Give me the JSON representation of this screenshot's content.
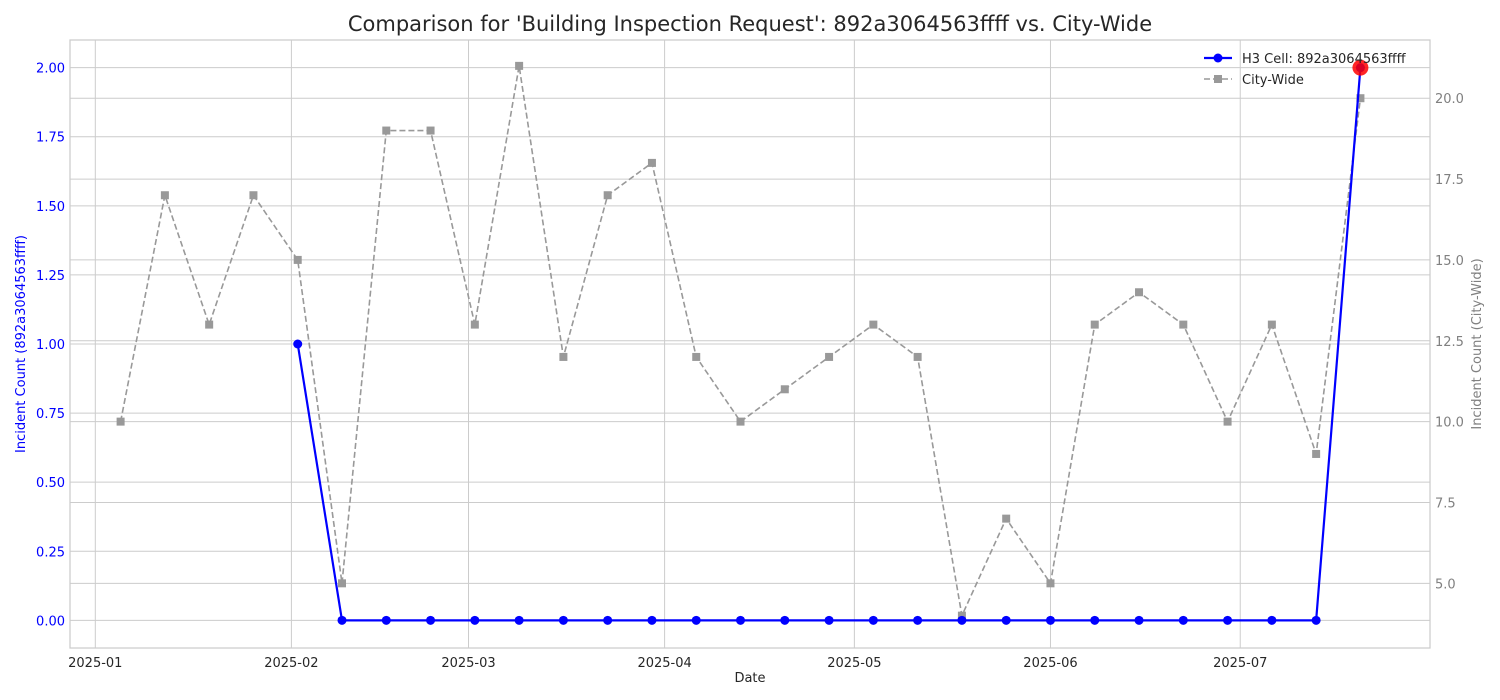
{
  "chart_data": {
    "type": "line",
    "title": "Comparison for 'Building Inspection Request': 892a3064563ffff vs. City-Wide",
    "xlabel": "Date",
    "ylabel_left": "Incident Count (892a3064563ffff)",
    "ylabel_right": "Incident Count (City-Wide)",
    "ylim_left": [
      -0.1,
      2.1
    ],
    "ylim_right": [
      3.0,
      21.8
    ],
    "xlim": [
      "2024-12-28",
      "2025-07-31"
    ],
    "grid": true,
    "legend_position": "top-right",
    "x_ticks": [
      {
        "date": "2025-01-01",
        "label": "2025-01"
      },
      {
        "date": "2025-02-01",
        "label": "2025-02"
      },
      {
        "date": "2025-03-01",
        "label": "2025-03"
      },
      {
        "date": "2025-04-01",
        "label": "2025-04"
      },
      {
        "date": "2025-05-01",
        "label": "2025-05"
      },
      {
        "date": "2025-06-01",
        "label": "2025-06"
      },
      {
        "date": "2025-07-01",
        "label": "2025-07"
      }
    ],
    "y_left_ticks": [
      "0.00",
      "0.25",
      "0.50",
      "0.75",
      "1.00",
      "1.25",
      "1.50",
      "1.75",
      "2.00"
    ],
    "y_right_ticks": [
      "5.0",
      "7.5",
      "10.0",
      "12.5",
      "15.0",
      "17.5",
      "20.0"
    ],
    "series": [
      {
        "name": "H3 Cell: 892a3064563ffff",
        "axis": "left",
        "color": "#0000ff",
        "style": "solid",
        "marker": "circle",
        "x": [
          "2025-02-02",
          "2025-02-09",
          "2025-02-16",
          "2025-02-23",
          "2025-03-02",
          "2025-03-09",
          "2025-03-16",
          "2025-03-23",
          "2025-03-30",
          "2025-04-06",
          "2025-04-13",
          "2025-04-20",
          "2025-04-27",
          "2025-05-04",
          "2025-05-11",
          "2025-05-18",
          "2025-05-25",
          "2025-06-01",
          "2025-06-08",
          "2025-06-15",
          "2025-06-22",
          "2025-06-29",
          "2025-07-06",
          "2025-07-13",
          "2025-07-20"
        ],
        "values": [
          1,
          0,
          0,
          0,
          0,
          0,
          0,
          0,
          0,
          0,
          0,
          0,
          0,
          0,
          0,
          0,
          0,
          0,
          0,
          0,
          0,
          0,
          0,
          0,
          2
        ]
      },
      {
        "name": "City-Wide",
        "axis": "right",
        "color": "#999999",
        "style": "dashed",
        "marker": "square",
        "x": [
          "2025-01-05",
          "2025-01-12",
          "2025-01-19",
          "2025-01-26",
          "2025-02-02",
          "2025-02-09",
          "2025-02-16",
          "2025-02-23",
          "2025-03-02",
          "2025-03-09",
          "2025-03-16",
          "2025-03-23",
          "2025-03-30",
          "2025-04-06",
          "2025-04-13",
          "2025-04-20",
          "2025-04-27",
          "2025-05-04",
          "2025-05-11",
          "2025-05-18",
          "2025-05-25",
          "2025-06-01",
          "2025-06-08",
          "2025-06-15",
          "2025-06-22",
          "2025-06-29",
          "2025-07-06",
          "2025-07-13",
          "2025-07-20"
        ],
        "values": [
          10,
          17,
          13,
          17,
          15,
          5,
          19,
          19,
          13,
          21,
          12,
          17,
          18,
          12,
          10,
          11,
          12,
          13,
          12,
          4,
          7,
          5,
          13,
          14,
          13,
          10,
          13,
          9,
          20
        ]
      }
    ],
    "highlight": {
      "x": "2025-07-20",
      "value": 2,
      "axis": "left",
      "color": "#ff0000"
    }
  }
}
